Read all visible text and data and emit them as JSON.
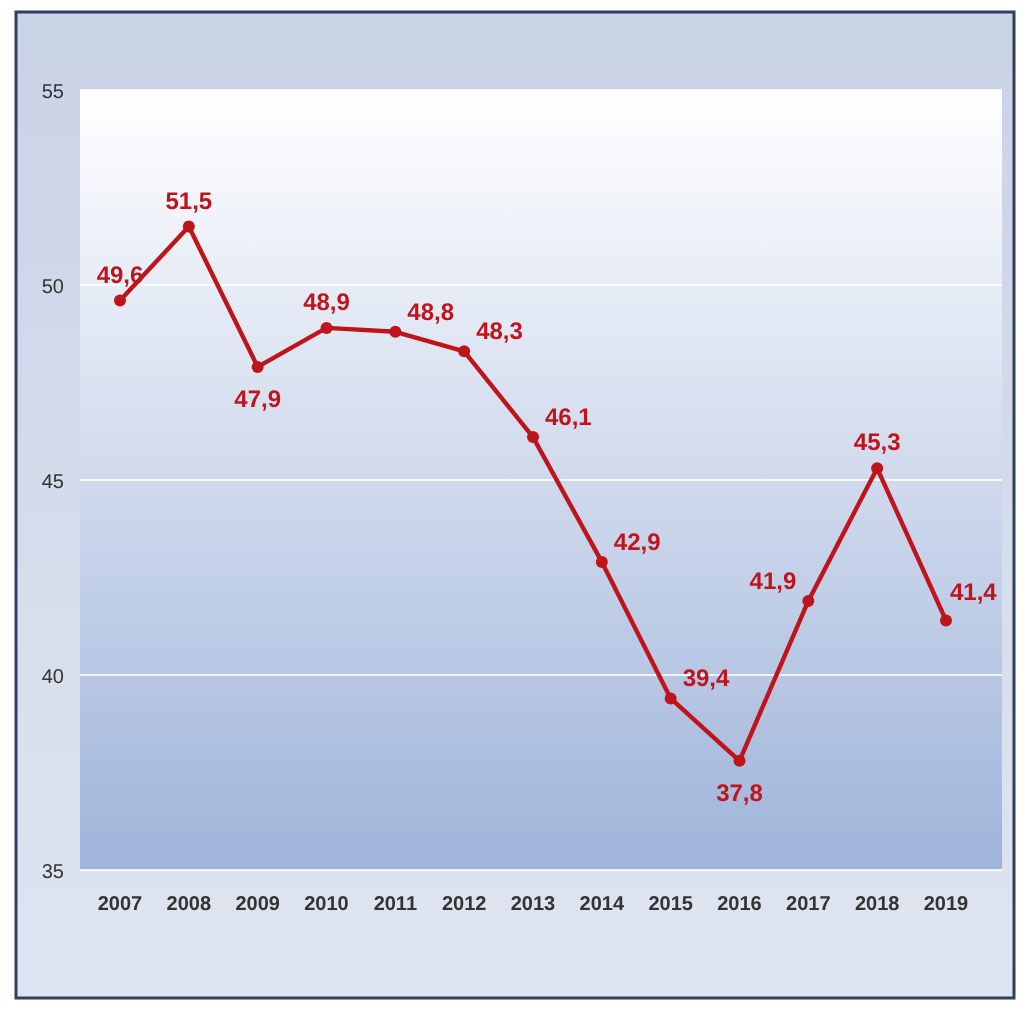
{
  "chart_data": {
    "type": "line",
    "categories": [
      "2007",
      "2008",
      "2009",
      "2010",
      "2011",
      "2012",
      "2013",
      "2014",
      "2015",
      "2016",
      "2017",
      "2018",
      "2019"
    ],
    "series": [
      {
        "color": "#c0141c",
        "values": [
          49.6,
          51.5,
          47.9,
          48.9,
          48.8,
          48.3,
          46.1,
          42.9,
          39.4,
          37.8,
          41.9,
          45.3,
          41.4
        ],
        "value_labels": [
          "49,6",
          "51,5",
          "47,9",
          "48,9",
          "48,8",
          "48,3",
          "46,1",
          "42,9",
          "39,4",
          "37,8",
          "41,9",
          "45,3",
          "41,4"
        ]
      }
    ],
    "ylim": [
      35,
      55
    ],
    "yticks": [
      35,
      40,
      45,
      50,
      55
    ],
    "grid": "y",
    "marker": "circle",
    "line_style": "solid"
  }
}
